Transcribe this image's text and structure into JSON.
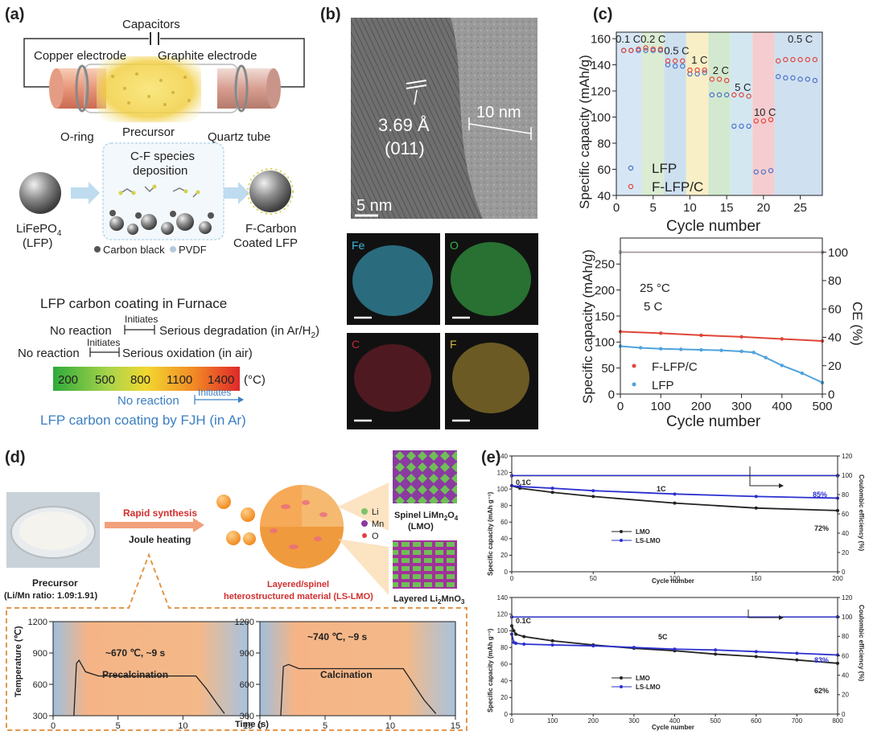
{
  "panel_labels": [
    "(a)",
    "(b)",
    "(c)",
    "(d)",
    "(e)"
  ],
  "a": {
    "capacitors": "Capacitors",
    "copper": "Copper electrode",
    "graphite": "Graphite electrode",
    "oring": "O-ring",
    "precursor": "Precursor",
    "quartz": "Quartz tube",
    "cf1": "C-F species",
    "cf2": "deposition",
    "lfp1": "LiFePO",
    "lfp_sub": "4",
    "lfp2": "(LFP)",
    "fc1": "F-Carbon",
    "fc2": "Coated LFP",
    "cb": "Carbon black",
    "pvdf": "PVDF",
    "furnace_title": "LFP carbon coating in Furnace",
    "no_reaction": "No reaction",
    "initiates": "Initiates",
    "degradation": "Serious degradation (in Ar/H",
    "degradation_sub": "2",
    "degradation_end": ")",
    "oxidation": "Serious oxidation (in air)",
    "temps": [
      "200",
      "500",
      "800",
      "1100",
      "1400"
    ],
    "unit": "(°C)",
    "fjh_no": "No reaction",
    "fjh_init": "Initiates",
    "fjh_title": "LFP carbon coating by FJH (in Ar)"
  },
  "b": {
    "lattice": "3.69 Å",
    "plane": "(011)",
    "thickness": "10 nm",
    "scale": "5 nm",
    "maps": [
      {
        "label": "Fe",
        "color": "#3fb6d8"
      },
      {
        "label": "O",
        "color": "#38b34a"
      },
      {
        "label": "C",
        "color": "#c22840"
      },
      {
        "label": "F",
        "color": "#d9b43a"
      }
    ]
  },
  "chart_data": [
    {
      "id": "c-rate",
      "type": "scatter",
      "xlabel": "Cycle number",
      "ylabel": "Specific capacity (mAh/g)",
      "xlim": [
        0,
        28
      ],
      "ylim": [
        40,
        165
      ],
      "xticks": [
        0,
        5,
        10,
        15,
        20,
        25
      ],
      "yticks": [
        40,
        60,
        80,
        100,
        120,
        140,
        160
      ],
      "rate_labels": [
        {
          "text": "0.1 C",
          "x": 1.6,
          "y": 157
        },
        {
          "text": "0.2 C",
          "x": 5.0,
          "y": 157
        },
        {
          "text": "0.5 C",
          "x": 8.2,
          "y": 148
        },
        {
          "text": "1 C",
          "x": 11.3,
          "y": 141
        },
        {
          "text": "2 C",
          "x": 14.2,
          "y": 133
        },
        {
          "text": "5 C",
          "x": 17.2,
          "y": 120
        },
        {
          "text": "10 C",
          "x": 20.2,
          "y": 101
        },
        {
          "text": "0.5 C",
          "x": 25.0,
          "y": 157
        }
      ],
      "bands": [
        {
          "from": 0,
          "to": 3.5,
          "color": "#d6e6f4"
        },
        {
          "from": 3.5,
          "to": 6.5,
          "color": "#dbecd3"
        },
        {
          "from": 6.5,
          "to": 9.5,
          "color": "#cde0f0"
        },
        {
          "from": 9.5,
          "to": 12.5,
          "color": "#f9efc6"
        },
        {
          "from": 12.5,
          "to": 15.5,
          "color": "#d2e8cf"
        },
        {
          "from": 15.5,
          "to": 18.5,
          "color": "#d3e7f1"
        },
        {
          "from": 18.5,
          "to": 21.5,
          "color": "#f5cdd0"
        },
        {
          "from": 21.5,
          "to": 28,
          "color": "#cfe0f0"
        }
      ],
      "series": [
        {
          "name": "LFP",
          "color": "#4a6fc8",
          "x": [
            1,
            2,
            3,
            4,
            5,
            6,
            7,
            8,
            9,
            10,
            11,
            12,
            13,
            14,
            15,
            16,
            17,
            18,
            19,
            20,
            21,
            22,
            23,
            24,
            25,
            26,
            27
          ],
          "y": [
            151,
            151,
            151,
            151,
            151,
            151,
            140,
            139,
            139,
            133,
            133,
            134,
            117,
            117,
            117,
            93,
            93,
            93,
            58,
            58,
            59,
            131,
            130,
            130,
            129,
            129,
            128
          ]
        },
        {
          "name": "F-LFP/C",
          "color": "#e0453a",
          "x": [
            1,
            2,
            3,
            4,
            5,
            6,
            7,
            8,
            9,
            10,
            11,
            12,
            13,
            14,
            15,
            16,
            17,
            18,
            19,
            20,
            21,
            22,
            23,
            24,
            25,
            26,
            27
          ],
          "y": [
            151,
            151,
            152,
            153,
            152,
            152,
            143,
            143,
            143,
            136,
            136,
            136,
            129,
            129,
            128,
            117,
            117,
            116,
            97,
            97,
            98,
            143,
            144,
            144,
            144,
            144,
            144
          ]
        }
      ]
    },
    {
      "id": "c-cycle",
      "type": "line",
      "xlabel": "Cycle number",
      "ylabel": "Specific capacity (mAh/g)",
      "y2label": "CE (%)",
      "annotation1": "25 °C",
      "annotation2": "5 C",
      "xlim": [
        0,
        500
      ],
      "ylim": [
        0,
        300
      ],
      "y2lim": [
        0,
        110
      ],
      "xticks": [
        0,
        100,
        200,
        300,
        400,
        500
      ],
      "yticks": [
        0,
        50,
        100,
        150,
        200,
        250
      ],
      "y2ticks": [
        0,
        20,
        40,
        60,
        80,
        100
      ],
      "series": [
        {
          "name": "F-LFP/C",
          "color": "#e0453a",
          "x": [
            0,
            100,
            200,
            300,
            400,
            500
          ],
          "y": [
            120,
            117,
            113,
            110,
            106,
            102
          ]
        },
        {
          "name": "LFP",
          "color": "#4fa3dc",
          "x": [
            0,
            50,
            100,
            150,
            200,
            250,
            300,
            330,
            360,
            400,
            450,
            500
          ],
          "y": [
            92,
            89,
            87,
            86,
            85,
            84,
            82,
            80,
            70,
            55,
            40,
            22
          ]
        },
        {
          "name": "F-LFP/C CE",
          "axis": "y2",
          "color": "#e0453a",
          "x": [
            0,
            500
          ],
          "y": [
            100,
            100
          ]
        },
        {
          "name": "LFP CE",
          "axis": "y2",
          "color": "#9aa0a8",
          "x": [
            0,
            500
          ],
          "y": [
            100,
            100
          ]
        }
      ]
    },
    {
      "id": "d-profile-1",
      "type": "line",
      "title": "Precalcination",
      "annotation": "~670 ℃, ~9 s",
      "xlabel": "Time (s)",
      "ylabel": "Temperature (℃)",
      "xlim": [
        0,
        15
      ],
      "ylim": [
        300,
        1200
      ],
      "xticks": [
        0,
        5,
        10,
        15
      ],
      "yticks": [
        300,
        600,
        900,
        1200
      ],
      "series": [
        {
          "name": "T",
          "x": [
            1.6,
            1.8,
            2.0,
            2.5,
            3.5,
            11.0,
            11.8,
            12.6,
            13.2
          ],
          "y": [
            300,
            800,
            830,
            720,
            680,
            680,
            560,
            420,
            320
          ]
        }
      ]
    },
    {
      "id": "d-profile-2",
      "type": "line",
      "title": "Calcination",
      "annotation": "~740 ℃, ~9 s",
      "xlabel": "Time (s)",
      "ylabel": "Temperature (℃)",
      "xlim": [
        0,
        15
      ],
      "ylim": [
        300,
        1200
      ],
      "xticks": [
        0,
        5,
        10,
        15
      ],
      "yticks": [
        300,
        600,
        900,
        1200
      ],
      "series": [
        {
          "name": "T",
          "x": [
            1.6,
            1.8,
            2.2,
            3.0,
            11.0,
            11.8,
            12.6,
            13.5
          ],
          "y": [
            300,
            770,
            790,
            750,
            750,
            600,
            450,
            320
          ]
        }
      ]
    },
    {
      "id": "e-1c",
      "type": "line",
      "xlabel": "Cycle number",
      "ylabel": "Specific capacity (mAh g⁻¹)",
      "y2label": "Coulombic efficiency (%)",
      "rate": "1C",
      "start_label": "0.1C",
      "xlim": [
        0,
        200
      ],
      "ylim": [
        0,
        140
      ],
      "y2lim": [
        0,
        120
      ],
      "xticks": [
        0,
        50,
        100,
        150,
        200
      ],
      "yticks": [
        0,
        20,
        40,
        60,
        80,
        100,
        120,
        140
      ],
      "y2ticks": [
        0,
        20,
        40,
        60,
        80,
        100,
        120
      ],
      "pct1": "85%",
      "pct2": "72%",
      "series": [
        {
          "name": "LMO",
          "color": "#222222",
          "x": [
            0,
            5,
            25,
            50,
            100,
            150,
            200
          ],
          "y": [
            104,
            101,
            96,
            91,
            83,
            77,
            74
          ]
        },
        {
          "name": "LS-LMO",
          "color": "#2a2fcf",
          "x": [
            0,
            5,
            25,
            50,
            100,
            150,
            200
          ],
          "y": [
            104,
            103,
            101,
            98,
            94,
            91,
            89
          ]
        },
        {
          "name": "LMO CE",
          "axis": "y2",
          "color": "#222222",
          "x": [
            0,
            200
          ],
          "y": [
            99.5,
            99.5
          ]
        },
        {
          "name": "LS-LMO CE",
          "axis": "y2",
          "color": "#2a2fcf",
          "x": [
            0,
            200
          ],
          "y": [
            99.7,
            99.7
          ]
        }
      ]
    },
    {
      "id": "e-5c",
      "type": "line",
      "xlabel": "Cycle number",
      "ylabel": "Specific capacity (mAh g⁻¹)",
      "y2label": "Coulombic efficiency (%)",
      "rate": "5C",
      "start_label": "0.1C",
      "xlim": [
        0,
        800
      ],
      "ylim": [
        0,
        140
      ],
      "y2lim": [
        0,
        120
      ],
      "xticks": [
        0,
        100,
        200,
        300,
        400,
        500,
        600,
        700,
        800
      ],
      "yticks": [
        0,
        20,
        40,
        60,
        80,
        100,
        120,
        140
      ],
      "y2ticks": [
        0,
        20,
        40,
        60,
        80,
        100,
        120
      ],
      "pct1": "83%",
      "pct2": "62%",
      "series": [
        {
          "name": "LMO",
          "color": "#222222",
          "x": [
            0,
            5,
            10,
            30,
            100,
            200,
            300,
            400,
            500,
            600,
            700,
            800
          ],
          "y": [
            106,
            100,
            96,
            93,
            88,
            83,
            79,
            76,
            72,
            69,
            65,
            61
          ]
        },
        {
          "name": "LS-LMO",
          "color": "#2a2fcf",
          "x": [
            0,
            5,
            10,
            30,
            100,
            200,
            300,
            400,
            500,
            600,
            700,
            800
          ],
          "y": [
            96,
            86,
            85,
            84,
            83,
            82,
            80,
            78,
            77,
            75,
            73,
            71
          ]
        },
        {
          "name": "LMO CE",
          "axis": "y2",
          "color": "#222222",
          "x": [
            0,
            800
          ],
          "y": [
            100,
            100
          ]
        },
        {
          "name": "LS-LMO CE",
          "axis": "y2",
          "color": "#2a2fcf",
          "x": [
            0,
            800
          ],
          "y": [
            100,
            100
          ]
        }
      ]
    }
  ],
  "d": {
    "rapid": "Rapid synthesis",
    "joule": "Joule heating",
    "precursor": "Precursor",
    "ratio": "(Li/Mn ratio: 1.09:1.91)",
    "legend_li": "Li",
    "legend_mn": "Mn",
    "legend_o": "O",
    "spinel1": "Spinel LiMn",
    "spinel_sub1": "2",
    "spinel2": "O",
    "spinel_sub2": "4",
    "spinel3": "(LMO)",
    "layered_title1": "Layered/spinel",
    "layered_title2": "heterostructured material (LS-LMO)",
    "layered_li": "Layered Li",
    "layered_sub1": "2",
    "layered_mn": "MnO",
    "layered_sub2": "3"
  }
}
